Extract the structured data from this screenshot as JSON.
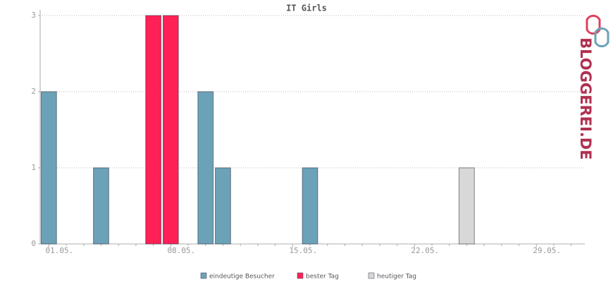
{
  "chart_data": {
    "type": "bar",
    "title": "IT Girls",
    "categories": [
      "01.05.",
      null,
      null,
      null,
      null,
      null,
      null,
      "08.05.",
      null,
      null,
      null,
      null,
      null,
      null,
      "15.05.",
      null,
      null,
      null,
      null,
      null,
      null,
      "22.05.",
      null,
      null,
      null,
      null,
      null,
      null,
      "29.05.",
      null,
      null
    ],
    "series": [
      {
        "name": "eindeutige Besucher",
        "color": "#6ca2b8",
        "values": [
          2,
          null,
          null,
          1,
          null,
          null,
          null,
          null,
          null,
          2,
          1,
          null,
          null,
          null,
          null,
          1,
          null,
          null,
          null,
          null,
          null,
          null,
          null,
          null,
          null,
          null,
          null,
          null,
          null,
          null,
          null
        ]
      },
      {
        "name": "bester Tag",
        "color": "#ff2056",
        "values": [
          null,
          null,
          null,
          null,
          null,
          null,
          3,
          3,
          null,
          null,
          null,
          null,
          null,
          null,
          null,
          null,
          null,
          null,
          null,
          null,
          null,
          null,
          null,
          null,
          null,
          null,
          null,
          null,
          null,
          null,
          null
        ]
      },
      {
        "name": "heutiger Tag",
        "color": "#d8d8d8",
        "values": [
          null,
          null,
          null,
          null,
          null,
          null,
          null,
          null,
          null,
          null,
          null,
          null,
          null,
          null,
          null,
          null,
          null,
          null,
          null,
          null,
          null,
          null,
          null,
          null,
          1,
          null,
          null,
          null,
          null,
          null,
          null
        ]
      }
    ],
    "ylim": [
      0,
      3
    ],
    "yticks": [
      0,
      1,
      2,
      3
    ],
    "grid": true,
    "logo": "BLOGGEREI.DE"
  }
}
